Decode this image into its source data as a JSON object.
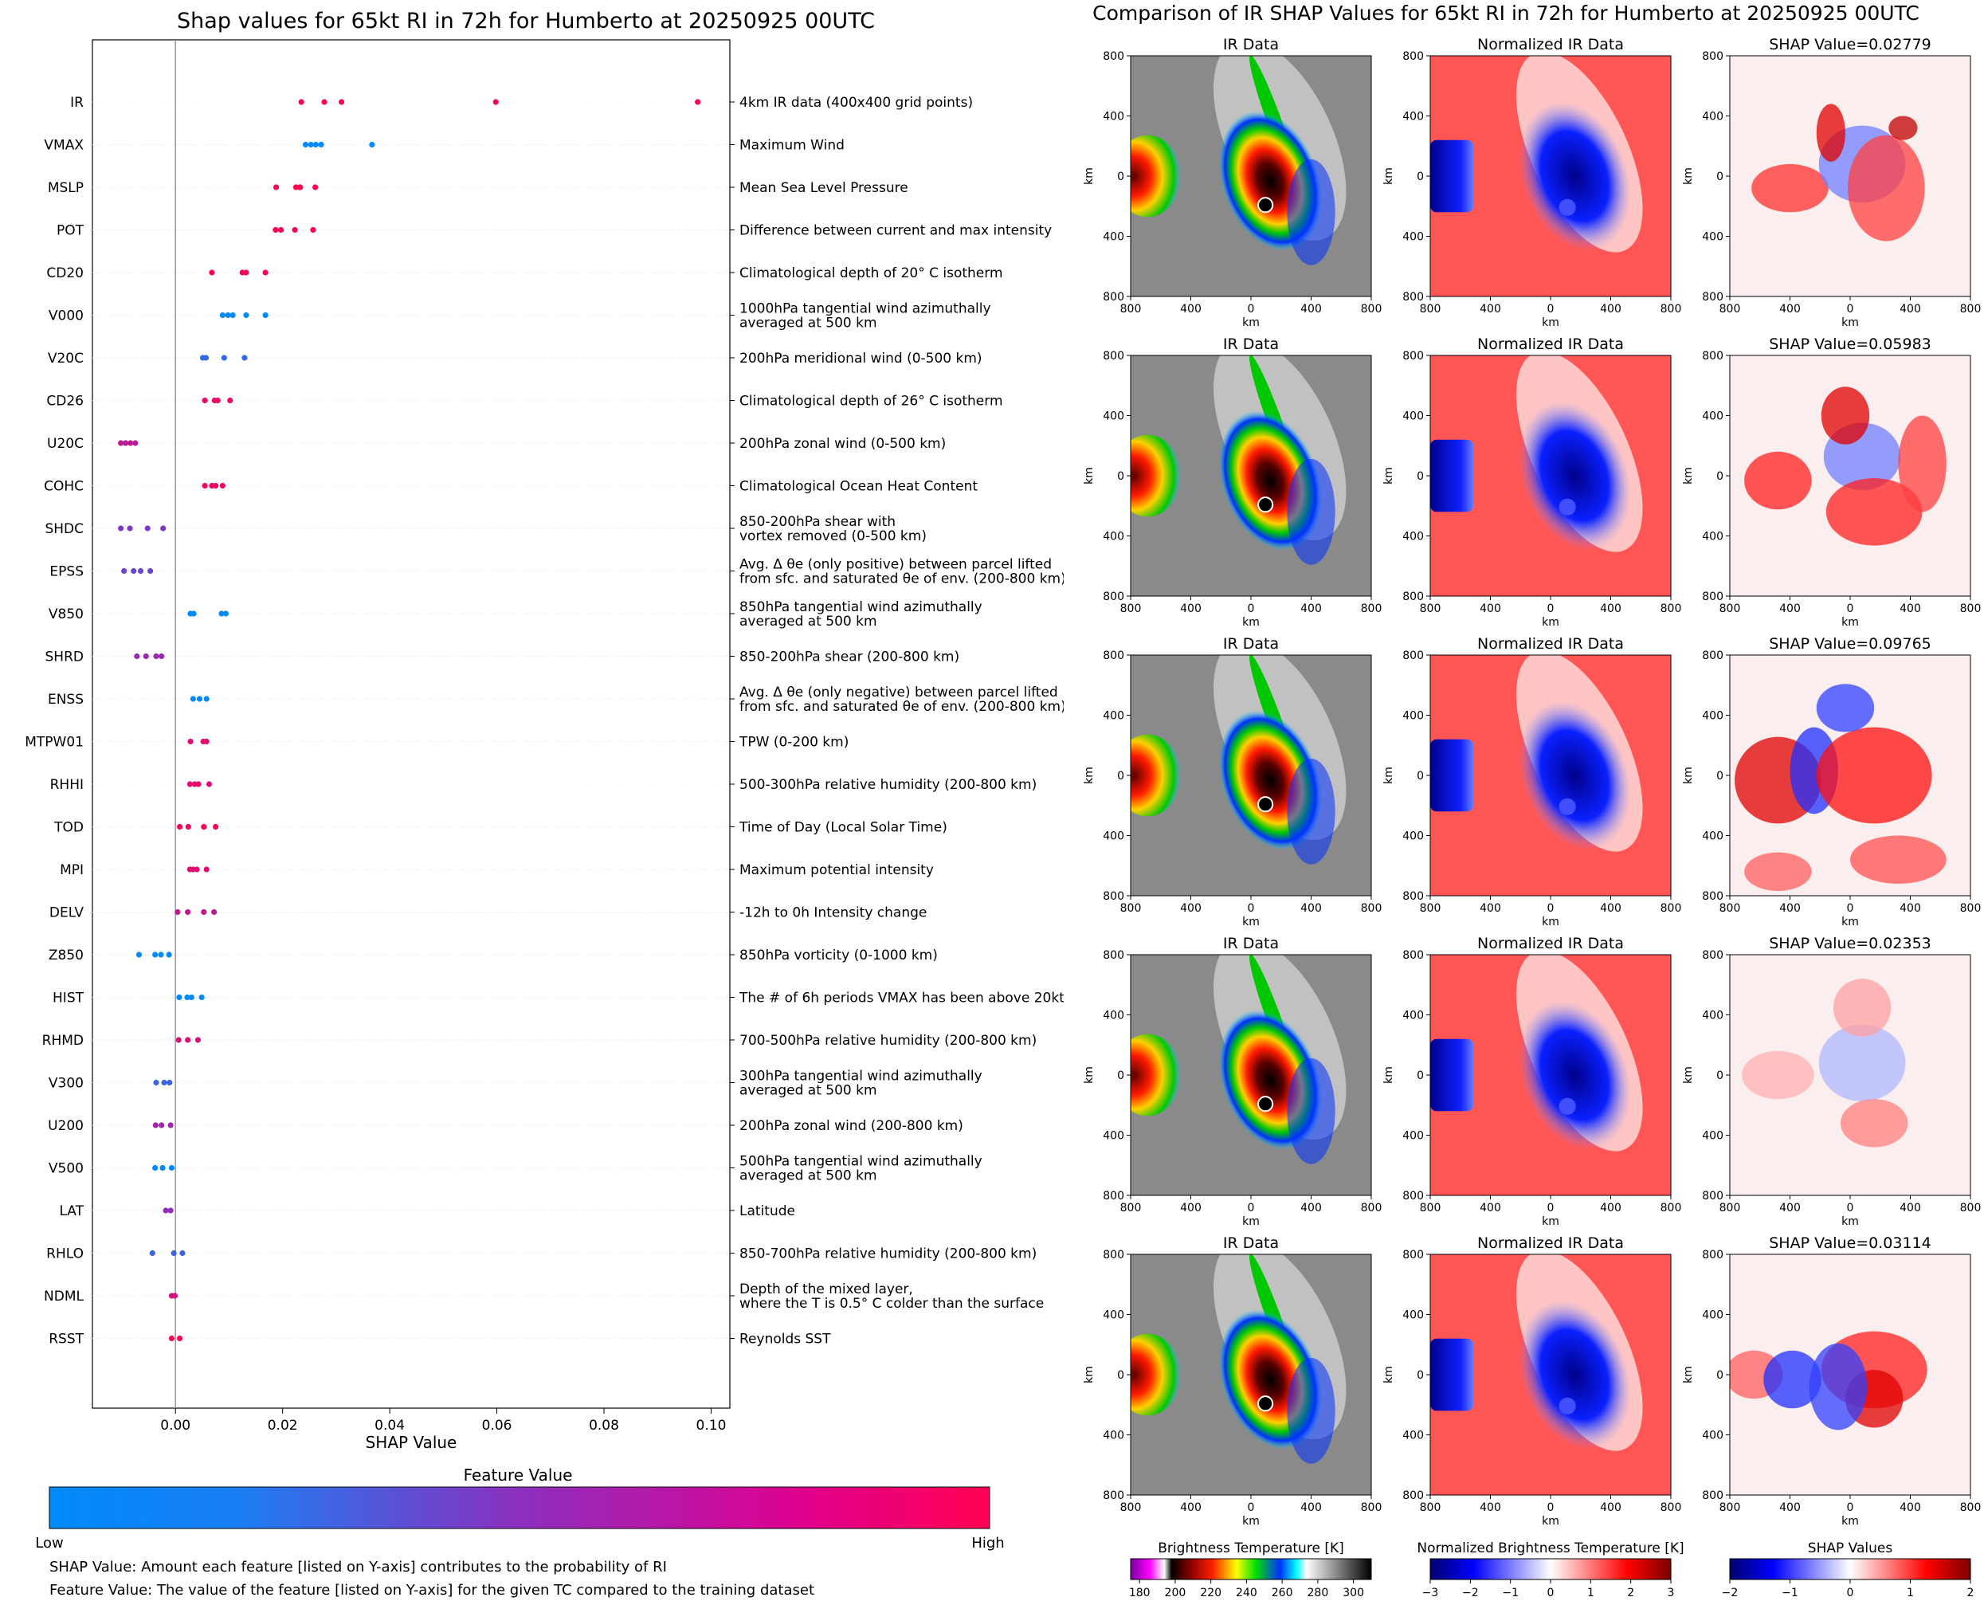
{
  "left": {
    "title": "Shap values for 65kt RI in 72h for Humberto at 20250925 00UTC",
    "xlabel": "SHAP Value",
    "xticks": [
      "0.00",
      "0.02",
      "0.04",
      "0.06",
      "0.08",
      "0.10"
    ],
    "legend": {
      "title": "Feature Value",
      "low": "Low",
      "high": "High",
      "note1": "SHAP Value: Amount each feature [listed on Y-axis] contributes to the probability of RI",
      "note2": "Feature Value: The value of the feature [listed on Y-axis] for the given TC compared to the training dataset"
    },
    "colors": {
      "low": "#008afb",
      "mid": "#8c2fbe",
      "high": "#ff0051"
    }
  },
  "chart_data": [
    {
      "type": "scatter",
      "title": "Shap values for 65kt RI in 72h for Humberto at 20250925 00UTC",
      "xlabel": "SHAP Value",
      "xlim": [
        -0.0155,
        0.1035
      ],
      "grid": false,
      "features": [
        {
          "name": "IR",
          "desc": [
            "4km IR data (400x400 grid points)"
          ],
          "points": [
            [
              0.0235,
              1
            ],
            [
              0.0278,
              1
            ],
            [
              0.031,
              1
            ],
            [
              0.0598,
              1
            ],
            [
              0.0975,
              1
            ]
          ]
        },
        {
          "name": "VMAX",
          "desc": [
            "Maximum Wind"
          ],
          "points": [
            [
              0.0243,
              0
            ],
            [
              0.0253,
              0
            ],
            [
              0.0262,
              0
            ],
            [
              0.0272,
              0
            ],
            [
              0.0367,
              0
            ]
          ]
        },
        {
          "name": "MSLP",
          "desc": [
            "Mean Sea Level Pressure"
          ],
          "points": [
            [
              0.0188,
              1
            ],
            [
              0.0225,
              1
            ],
            [
              0.0232,
              1
            ],
            [
              0.0233,
              1
            ],
            [
              0.0261,
              1
            ]
          ]
        },
        {
          "name": "POT",
          "desc": [
            "Difference between current and max intensity"
          ],
          "points": [
            [
              0.0187,
              1
            ],
            [
              0.0197,
              1
            ],
            [
              0.0223,
              1
            ],
            [
              0.0257,
              1
            ]
          ]
        },
        {
          "name": "CD20",
          "desc": [
            "Climatological depth of 20° C isotherm"
          ],
          "points": [
            [
              0.0068,
              0.95
            ],
            [
              0.0125,
              0.95
            ],
            [
              0.0132,
              0.95
            ],
            [
              0.0168,
              0.95
            ]
          ]
        },
        {
          "name": "V000",
          "desc": [
            "1000hPa tangential wind azimuthally",
            "averaged at 500 km"
          ],
          "points": [
            [
              0.0088,
              0
            ],
            [
              0.0098,
              0
            ],
            [
              0.0107,
              0
            ],
            [
              0.0132,
              0
            ],
            [
              0.0168,
              0
            ]
          ]
        },
        {
          "name": "V20C",
          "desc": [
            "200hPa meridional wind (0-500 km)"
          ],
          "points": [
            [
              0.0051,
              0.18
            ],
            [
              0.0057,
              0.18
            ],
            [
              0.0091,
              0.18
            ],
            [
              0.0129,
              0.18
            ]
          ]
        },
        {
          "name": "CD26",
          "desc": [
            "Climatological depth of 26° C isotherm"
          ],
          "points": [
            [
              0.0055,
              0.9
            ],
            [
              0.0073,
              0.9
            ],
            [
              0.0079,
              0.9
            ],
            [
              0.0102,
              0.9
            ]
          ]
        },
        {
          "name": "U20C",
          "desc": [
            "200hPa zonal wind (0-500 km)"
          ],
          "points": [
            [
              -0.0102,
              0.7
            ],
            [
              -0.0093,
              0.7
            ],
            [
              -0.0084,
              0.7
            ],
            [
              -0.0075,
              0.7
            ]
          ]
        },
        {
          "name": "COHC",
          "desc": [
            "Climatological Ocean Heat Content"
          ],
          "points": [
            [
              0.0055,
              0.92
            ],
            [
              0.0068,
              0.92
            ],
            [
              0.0075,
              0.92
            ],
            [
              0.0088,
              0.92
            ]
          ]
        },
        {
          "name": "SHDC",
          "desc": [
            "850-200hPa shear with",
            "vortex removed (0-500 km)"
          ],
          "points": [
            [
              -0.0102,
              0.45
            ],
            [
              -0.0085,
              0.45
            ],
            [
              -0.0052,
              0.45
            ],
            [
              -0.0023,
              0.45
            ]
          ]
        },
        {
          "name": "EPSS",
          "desc": [
            "Avg. Δ θe (only positive) between parcel lifted",
            "from sfc. and saturated θe of env. (200-800 km)"
          ],
          "points": [
            [
              -0.0096,
              0.38
            ],
            [
              -0.0078,
              0.38
            ],
            [
              -0.0065,
              0.38
            ],
            [
              -0.0047,
              0.38
            ]
          ]
        },
        {
          "name": "V850",
          "desc": [
            "850hPa tangential wind azimuthally",
            "averaged at 500 km"
          ],
          "points": [
            [
              0.0028,
              0
            ],
            [
              0.0034,
              0
            ],
            [
              0.0086,
              0
            ],
            [
              0.0094,
              0
            ]
          ]
        },
        {
          "name": "SHRD",
          "desc": [
            "850-200hPa shear (200-800 km)"
          ],
          "points": [
            [
              -0.0072,
              0.55
            ],
            [
              -0.0055,
              0.55
            ],
            [
              -0.0036,
              0.55
            ],
            [
              -0.0026,
              0.55
            ]
          ]
        },
        {
          "name": "ENSS",
          "desc": [
            "Avg. Δ θe (only negative) between parcel lifted",
            "from sfc. and saturated θe of env. (200-800 km)"
          ],
          "points": [
            [
              0.0033,
              0
            ],
            [
              0.0045,
              0
            ],
            [
              0.0058,
              0
            ]
          ]
        },
        {
          "name": "MTPW01",
          "desc": [
            "TPW (0-200 km)"
          ],
          "points": [
            [
              0.0028,
              0.85
            ],
            [
              0.0052,
              0.85
            ],
            [
              0.0058,
              0.85
            ]
          ]
        },
        {
          "name": "RHHI",
          "desc": [
            "500-300hPa relative humidity (200-800 km)"
          ],
          "points": [
            [
              0.0027,
              0.88
            ],
            [
              0.0036,
              0.88
            ],
            [
              0.0043,
              0.88
            ],
            [
              0.0063,
              0.88
            ]
          ]
        },
        {
          "name": "TOD",
          "desc": [
            "Time of Day (Local Solar Time)"
          ],
          "points": [
            [
              0.0008,
              0.95
            ],
            [
              0.0024,
              0.95
            ],
            [
              0.0053,
              0.95
            ],
            [
              0.0075,
              0.95
            ]
          ]
        },
        {
          "name": "MPI",
          "desc": [
            "Maximum potential intensity"
          ],
          "points": [
            [
              0.0027,
              0.87
            ],
            [
              0.0033,
              0.87
            ],
            [
              0.004,
              0.87
            ],
            [
              0.0058,
              0.87
            ]
          ]
        },
        {
          "name": "DELV",
          "desc": [
            "-12h to 0h Intensity change"
          ],
          "points": [
            [
              0.0004,
              0.72
            ],
            [
              0.0023,
              0.72
            ],
            [
              0.0053,
              0.72
            ],
            [
              0.0072,
              0.72
            ]
          ]
        },
        {
          "name": "Z850",
          "desc": [
            "850hPa vorticity (0-1000 km)"
          ],
          "points": [
            [
              -0.0068,
              0
            ],
            [
              -0.0038,
              0
            ],
            [
              -0.0027,
              0
            ],
            [
              -0.0012,
              0
            ]
          ]
        },
        {
          "name": "HIST",
          "desc": [
            "The # of 6h periods VMAX has been above 20kt"
          ],
          "points": [
            [
              0.0007,
              0
            ],
            [
              0.0022,
              0
            ],
            [
              0.003,
              0
            ],
            [
              0.0049,
              0
            ]
          ]
        },
        {
          "name": "RHMD",
          "desc": [
            "700-500hPa relative humidity (200-800 km)"
          ],
          "points": [
            [
              0.0006,
              0.83
            ],
            [
              0.0023,
              0.83
            ],
            [
              0.0042,
              0.83
            ]
          ]
        },
        {
          "name": "V300",
          "desc": [
            "300hPa tangential wind azimuthally",
            "averaged at 500 km"
          ],
          "points": [
            [
              -0.0036,
              0.2
            ],
            [
              -0.0021,
              0.2
            ],
            [
              -0.0011,
              0.2
            ]
          ]
        },
        {
          "name": "U200",
          "desc": [
            "200hPa zonal wind (200-800 km)"
          ],
          "points": [
            [
              -0.0037,
              0.6
            ],
            [
              -0.0026,
              0.6
            ],
            [
              -0.0009,
              0.6
            ]
          ]
        },
        {
          "name": "V500",
          "desc": [
            "500hPa tangential wind azimuthally",
            "averaged at 500 km"
          ],
          "points": [
            [
              -0.0038,
              0
            ],
            [
              -0.0024,
              0
            ],
            [
              -0.0007,
              0
            ]
          ]
        },
        {
          "name": "LAT",
          "desc": [
            "Latitude"
          ],
          "points": [
            [
              -0.0018,
              0.52
            ],
            [
              -0.0009,
              0.52
            ]
          ]
        },
        {
          "name": "RHLO",
          "desc": [
            "850-700hPa relative humidity (200-800 km)"
          ],
          "points": [
            [
              -0.0043,
              0.22
            ],
            [
              -0.0003,
              0.22
            ],
            [
              0.0013,
              0.22
            ]
          ]
        },
        {
          "name": "NDML",
          "desc": [
            "Depth of the mixed layer,",
            "where the T is 0.5° C colder than the surface"
          ],
          "points": [
            [
              -0.0007,
              0.8
            ],
            [
              -0.0001,
              0.8
            ]
          ]
        },
        {
          "name": "RSST",
          "desc": [
            "Reynolds SST"
          ],
          "points": [
            [
              -0.0007,
              0.95
            ],
            [
              0.0008,
              0.95
            ]
          ]
        }
      ]
    },
    {
      "type": "heatmap",
      "title": "Comparison of IR SHAP Values for 65kt RI in 72h for Humberto at 20250925 00UTC",
      "panel_titles": [
        "IR Data",
        "Normalized IR Data"
      ],
      "shap_values": [
        "SHAP Value=0.02779",
        "SHAP Value=0.05983",
        "SHAP Value=0.09765",
        "SHAP Value=0.02353",
        "SHAP Value=0.03114"
      ],
      "axis_label": "km",
      "xticks": [
        "800",
        "400",
        "0",
        "400",
        "800"
      ],
      "yticks": [
        "800",
        "400",
        "0",
        "400",
        "800"
      ],
      "colorbars": [
        {
          "label": "Brightness Temperature [K]",
          "ticks": [
            "180",
            "200",
            "220",
            "240",
            "260",
            "280",
            "300"
          ]
        },
        {
          "label": "Normalized Brightness Temperature [K]",
          "ticks": [
            "−3",
            "−2",
            "−1",
            "0",
            "1",
            "2",
            "3"
          ]
        },
        {
          "label": "SHAP Values",
          "ticks": [
            "−2",
            "−1",
            "0",
            "1",
            "2"
          ],
          "offset": "1e−5"
        }
      ]
    }
  ]
}
